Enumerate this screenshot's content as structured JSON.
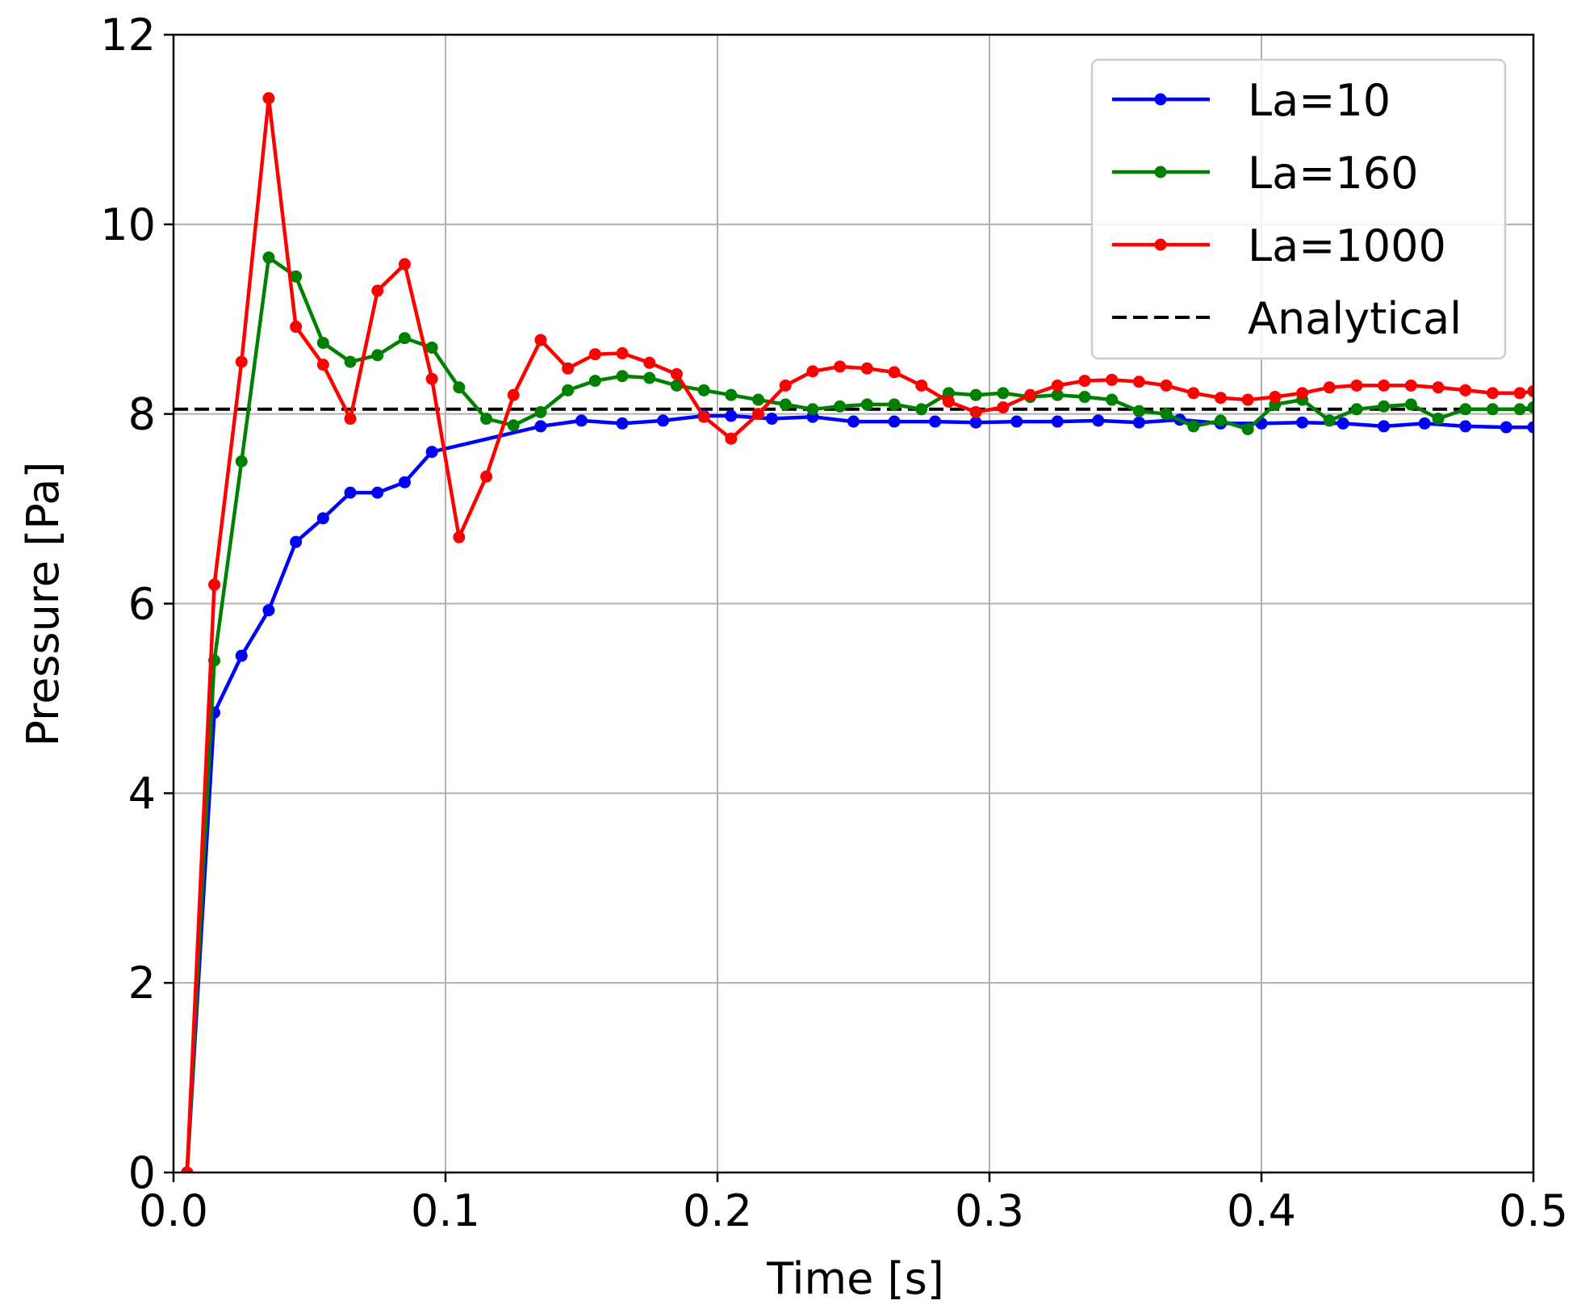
{
  "chart_data": {
    "type": "line",
    "title": "",
    "xlabel": "Time [s]",
    "ylabel": "Pressure [Pa]",
    "xlim": [
      0.0,
      0.5
    ],
    "ylim": [
      0,
      12
    ],
    "xticks": [
      "0.0",
      "0.1",
      "0.2",
      "0.3",
      "0.4",
      "0.5"
    ],
    "yticks": [
      "0",
      "2",
      "4",
      "6",
      "8",
      "10",
      "12"
    ],
    "grid": true,
    "legend_position": "top-right",
    "series": [
      {
        "name": "La=10",
        "color": "#0000ff",
        "marker": "circle",
        "x": [
          0.005,
          0.015,
          0.025,
          0.035,
          0.045,
          0.055,
          0.065,
          0.075,
          0.085,
          0.095,
          0.135,
          0.15,
          0.165,
          0.18,
          0.195,
          0.205,
          0.22,
          0.235,
          0.25,
          0.265,
          0.28,
          0.295,
          0.31,
          0.325,
          0.34,
          0.355,
          0.37,
          0.385,
          0.4,
          0.415,
          0.43,
          0.445,
          0.46,
          0.475,
          0.49,
          0.5
        ],
        "y": [
          0.0,
          4.85,
          5.45,
          5.93,
          6.65,
          6.9,
          7.17,
          7.17,
          7.28,
          7.6,
          7.87,
          7.93,
          7.9,
          7.93,
          7.98,
          7.98,
          7.95,
          7.97,
          7.92,
          7.92,
          7.92,
          7.91,
          7.92,
          7.92,
          7.93,
          7.91,
          7.94,
          7.9,
          7.9,
          7.91,
          7.9,
          7.87,
          7.9,
          7.87,
          7.86,
          7.86
        ]
      },
      {
        "name": "La=160",
        "color": "#008000",
        "marker": "circle",
        "x": [
          0.005,
          0.015,
          0.025,
          0.035,
          0.045,
          0.055,
          0.065,
          0.075,
          0.085,
          0.095,
          0.105,
          0.115,
          0.125,
          0.135,
          0.145,
          0.155,
          0.165,
          0.175,
          0.185,
          0.195,
          0.205,
          0.215,
          0.225,
          0.235,
          0.245,
          0.255,
          0.265,
          0.275,
          0.285,
          0.295,
          0.305,
          0.315,
          0.325,
          0.335,
          0.345,
          0.355,
          0.365,
          0.375,
          0.385,
          0.395,
          0.405,
          0.415,
          0.425,
          0.435,
          0.445,
          0.455,
          0.465,
          0.475,
          0.485,
          0.495,
          0.5
        ],
        "y": [
          0.0,
          5.4,
          7.5,
          9.65,
          9.45,
          8.75,
          8.55,
          8.62,
          8.8,
          8.7,
          8.28,
          7.95,
          7.88,
          8.02,
          8.25,
          8.35,
          8.4,
          8.38,
          8.3,
          8.25,
          8.2,
          8.15,
          8.1,
          8.05,
          8.08,
          8.1,
          8.1,
          8.05,
          8.22,
          8.2,
          8.22,
          8.18,
          8.2,
          8.18,
          8.15,
          8.03,
          8.0,
          7.87,
          7.93,
          7.84,
          8.1,
          8.15,
          7.93,
          8.05,
          8.08,
          8.1,
          7.95,
          8.05,
          8.05,
          8.05,
          8.07
        ]
      },
      {
        "name": "La=1000",
        "color": "#ff0000",
        "marker": "circle",
        "x": [
          0.005,
          0.015,
          0.025,
          0.035,
          0.045,
          0.055,
          0.065,
          0.075,
          0.085,
          0.095,
          0.105,
          0.115,
          0.125,
          0.135,
          0.145,
          0.155,
          0.165,
          0.175,
          0.185,
          0.195,
          0.205,
          0.215,
          0.225,
          0.235,
          0.245,
          0.255,
          0.265,
          0.275,
          0.285,
          0.295,
          0.305,
          0.315,
          0.325,
          0.335,
          0.345,
          0.355,
          0.365,
          0.375,
          0.385,
          0.395,
          0.405,
          0.415,
          0.425,
          0.435,
          0.445,
          0.455,
          0.465,
          0.475,
          0.485,
          0.495,
          0.5
        ],
        "y": [
          0.0,
          6.2,
          8.55,
          11.33,
          8.92,
          8.52,
          7.95,
          9.3,
          9.58,
          8.37,
          6.7,
          7.34,
          8.2,
          8.78,
          8.48,
          8.63,
          8.64,
          8.54,
          8.42,
          7.97,
          7.74,
          8.0,
          8.3,
          8.45,
          8.5,
          8.48,
          8.44,
          8.3,
          8.13,
          8.02,
          8.07,
          8.2,
          8.3,
          8.35,
          8.36,
          8.34,
          8.3,
          8.22,
          8.17,
          8.15,
          8.18,
          8.22,
          8.28,
          8.3,
          8.3,
          8.3,
          8.28,
          8.25,
          8.22,
          8.22,
          8.24
        ]
      },
      {
        "name": "Analytical",
        "color": "#000000",
        "style": "dashed",
        "x": [
          0.0,
          0.5
        ],
        "y": [
          8.05,
          8.05
        ]
      }
    ]
  }
}
